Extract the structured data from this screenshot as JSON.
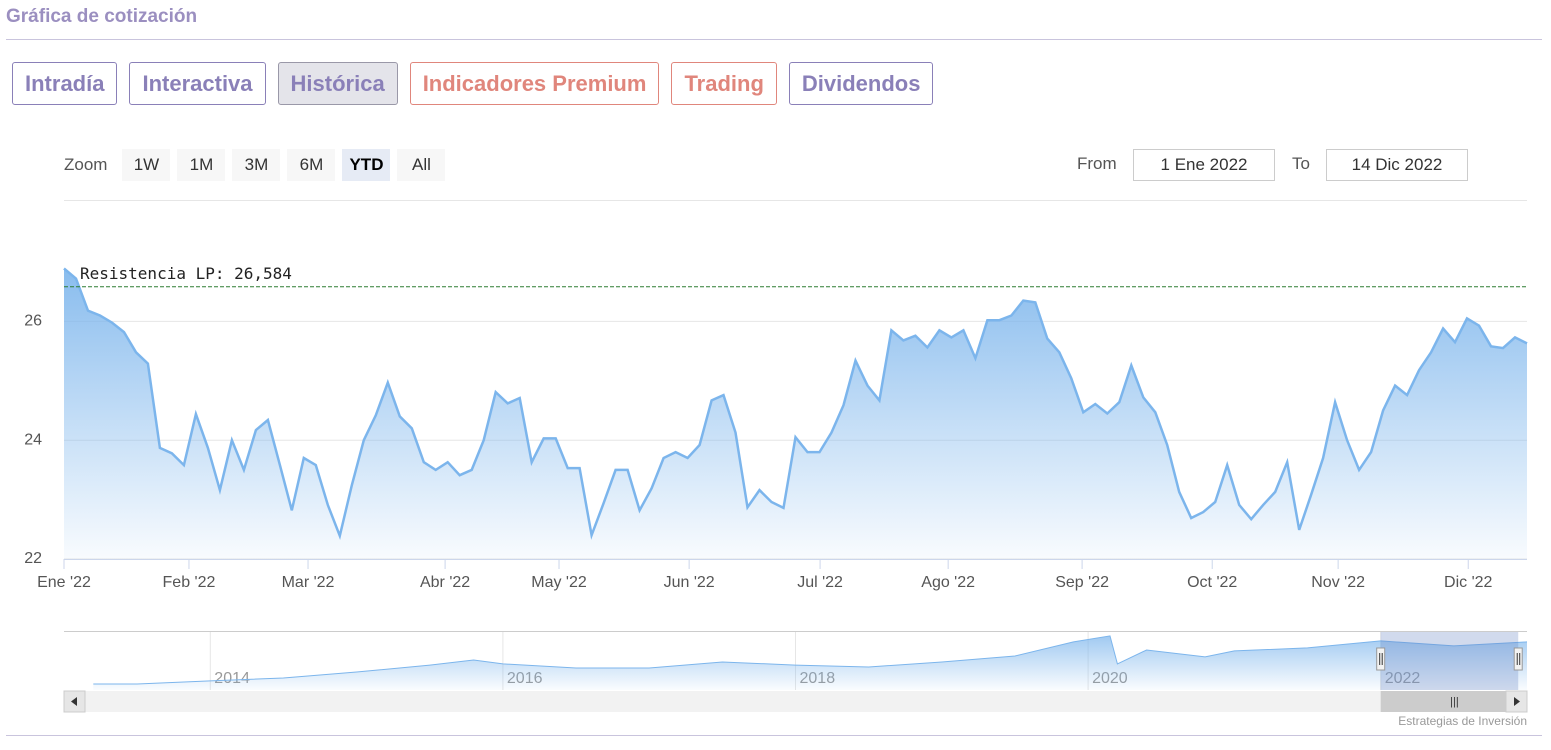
{
  "ui": {
    "title": "Gráfica de cotización",
    "tabs": [
      {
        "label": "Intradía",
        "color": "#8a80b8"
      },
      {
        "label": "Interactiva",
        "color": "#8a80b8"
      },
      {
        "label": "Histórica",
        "color": "#8a80b8"
      },
      {
        "label": "Indicadores Premium",
        "color": "#e0867c"
      },
      {
        "label": "Trading",
        "color": "#e0867c"
      },
      {
        "label": "Dividendos",
        "color": "#8a80b8"
      }
    ],
    "active_tab": 2,
    "zoom_label": "Zoom",
    "zoom": [
      "1W",
      "1M",
      "3M",
      "6M",
      "YTD",
      "All"
    ],
    "active_zoom": 4,
    "from_label": "From",
    "from": "1 Ene 2022",
    "to_label": "To",
    "to": "14 Dic 2022",
    "credit": "Estrategias de Inversión"
  },
  "chart_data": [
    {
      "type": "area",
      "color": "#7cb5ec",
      "values": [
        26.89,
        26.72,
        26.18,
        26.1,
        25.98,
        25.82,
        25.48,
        25.29,
        23.87,
        23.78,
        23.58,
        24.44,
        23.87,
        23.16,
        24.0,
        23.5,
        24.17,
        24.34,
        23.58,
        22.82,
        23.7,
        23.58,
        22.91,
        22.39,
        23.24,
        24.0,
        24.42,
        24.97,
        24.4,
        24.2,
        23.63,
        23.5,
        23.63,
        23.41,
        23.5,
        24.0,
        24.81,
        24.62,
        24.71,
        23.63,
        24.03,
        24.03,
        23.53,
        23.53,
        22.4,
        22.94,
        23.5,
        23.5,
        22.82,
        23.19,
        23.7,
        23.8,
        23.7,
        23.92,
        24.67,
        24.76,
        24.13,
        22.87,
        23.16,
        22.96,
        22.86,
        24.05,
        23.8,
        23.8,
        24.13,
        24.59,
        25.34,
        24.92,
        24.67,
        25.85,
        25.68,
        25.76,
        25.56,
        25.85,
        25.73,
        25.85,
        25.38,
        26.02,
        26.02,
        26.1,
        26.35,
        26.32,
        25.71,
        25.48,
        25.04,
        24.47,
        24.61,
        24.45,
        24.64,
        25.26,
        24.72,
        24.47,
        23.92,
        23.13,
        22.69,
        22.79,
        22.96,
        23.58,
        22.91,
        22.67,
        22.91,
        23.13,
        23.63,
        22.49,
        23.08,
        23.7,
        24.64,
        24.0,
        23.5,
        23.8,
        24.5,
        24.92,
        24.76,
        25.18,
        25.48,
        25.88,
        25.65,
        26.05,
        25.93,
        25.58,
        25.55,
        25.73,
        25.63
      ],
      "xlim": [
        0,
        122
      ],
      "xticks": [
        {
          "value": 0,
          "label": "Ene '22"
        },
        {
          "value": 10.42,
          "label": "Feb '22"
        },
        {
          "value": 20.35,
          "label": "Mar '22"
        },
        {
          "value": 31.78,
          "label": "Abr '22"
        },
        {
          "value": 41.28,
          "label": "May '22"
        },
        {
          "value": 52.13,
          "label": "Jun '22"
        },
        {
          "value": 63.05,
          "label": "Jul '22"
        },
        {
          "value": 73.73,
          "label": "Ago '22"
        },
        {
          "value": 84.9,
          "label": "Sep '22"
        },
        {
          "value": 95.75,
          "label": "Oct '22"
        },
        {
          "value": 106.25,
          "label": "Nov '22"
        },
        {
          "value": 117.1,
          "label": "Dic '22"
        }
      ],
      "ylim": [
        22,
        27
      ],
      "yticks": [
        22,
        24,
        26
      ],
      "grid": true,
      "annotations": [
        {
          "label": "Resistencia LP: 26,584",
          "value": 26.584,
          "color": "#2e7d32"
        }
      ]
    },
    {
      "type": "area",
      "color": "#7cb5ec",
      "x": [
        2013.2,
        2013.5,
        2014,
        2014.5,
        2015,
        2015.5,
        2015.8,
        2016,
        2016.5,
        2017,
        2017.5,
        2018,
        2018.5,
        2019,
        2019.5,
        2019.9,
        2020.15,
        2020.2,
        2020.4,
        2020.8,
        2021,
        2021.5,
        2022,
        2022.5,
        2023
      ],
      "values": [
        3.1,
        3.1,
        4.7,
        6.2,
        9.3,
        12.9,
        15.5,
        13.5,
        11.4,
        11.4,
        14.5,
        12.9,
        11.9,
        14.5,
        17.6,
        24.9,
        28,
        13.5,
        20.7,
        17.1,
        20.2,
        21.8,
        25.4,
        22.8,
        24.9
      ],
      "xlim": [
        2013,
        2023
      ],
      "ylim": [
        0,
        30
      ],
      "xticks": [
        2014,
        2016,
        2018,
        2020,
        2022
      ],
      "selection": [
        2022,
        2022.94
      ]
    }
  ]
}
